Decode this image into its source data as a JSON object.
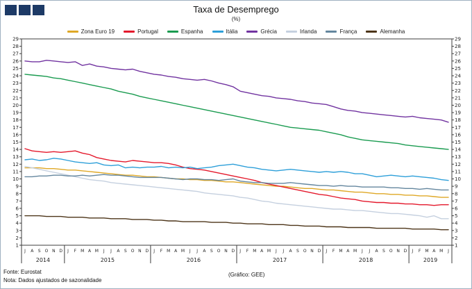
{
  "header": {
    "title": "Taxa de Desemprego",
    "subtitle": "(%)"
  },
  "logo": {
    "square_color": "#1d3a66",
    "square_count": 3
  },
  "footer": {
    "source": "Fonte: Eurostat",
    "note": "Nota: Dados ajustados de sazonalidade",
    "credit": "(Gráfico: GEE)"
  },
  "chart_data": {
    "type": "line",
    "title": "Taxa de Desemprego",
    "subtitle": "(%)",
    "ylim": [
      1,
      29
    ],
    "ytick_step": 1,
    "grid": false,
    "legend_position": "top",
    "axis_color": "#3c3c3c",
    "years": [
      {
        "label": "2014",
        "months": 6
      },
      {
        "label": "2015",
        "months": 12
      },
      {
        "label": "2016",
        "months": 12
      },
      {
        "label": "2017",
        "months": 12
      },
      {
        "label": "2018",
        "months": 12
      },
      {
        "label": "2019",
        "months": 6
      }
    ],
    "month_labels": [
      "J",
      "A",
      "S",
      "O",
      "N",
      "D",
      "J",
      "F",
      "M",
      "A",
      "M",
      "J",
      "J",
      "A",
      "S",
      "O",
      "N",
      "D",
      "J",
      "F",
      "M",
      "A",
      "M",
      "J",
      "J",
      "A",
      "S",
      "O",
      "N",
      "D",
      "J",
      "F",
      "M",
      "A",
      "M",
      "J",
      "J",
      "A",
      "S",
      "O",
      "N",
      "D",
      "J",
      "F",
      "M",
      "A",
      "M",
      "J",
      "J",
      "A",
      "S",
      "O",
      "N",
      "D",
      "J",
      "F",
      "M",
      "A",
      "M",
      "J"
    ],
    "series": [
      {
        "name": "Zona Euro 19",
        "color": "#dfa826",
        "values": [
          11.5,
          11.5,
          11.5,
          11.4,
          11.4,
          11.3,
          11.2,
          11.2,
          11.1,
          11.0,
          10.9,
          10.8,
          10.7,
          10.6,
          10.5,
          10.5,
          10.4,
          10.3,
          10.3,
          10.2,
          10.1,
          10.0,
          10.0,
          9.9,
          9.9,
          9.8,
          9.8,
          9.7,
          9.6,
          9.6,
          9.5,
          9.4,
          9.3,
          9.2,
          9.1,
          9.0,
          9.0,
          8.9,
          8.8,
          8.7,
          8.7,
          8.6,
          8.5,
          8.5,
          8.4,
          8.3,
          8.2,
          8.2,
          8.1,
          8.0,
          8.0,
          7.9,
          7.9,
          7.8,
          7.8,
          7.7,
          7.7,
          7.6,
          7.5,
          7.5
        ]
      },
      {
        "name": "Portugal",
        "color": "#e4192c",
        "values": [
          14.1,
          13.8,
          13.7,
          13.6,
          13.7,
          13.6,
          13.7,
          13.8,
          13.5,
          13.3,
          12.9,
          12.7,
          12.5,
          12.4,
          12.3,
          12.5,
          12.4,
          12.3,
          12.2,
          12.2,
          12.1,
          11.9,
          11.6,
          11.4,
          11.3,
          11.2,
          11.0,
          10.8,
          10.6,
          10.4,
          10.2,
          10.0,
          9.8,
          9.5,
          9.3,
          9.1,
          8.9,
          8.7,
          8.5,
          8.3,
          8.1,
          7.9,
          7.8,
          7.6,
          7.4,
          7.3,
          7.2,
          7.0,
          6.9,
          6.8,
          6.8,
          6.7,
          6.7,
          6.6,
          6.6,
          6.5,
          6.5,
          6.4,
          6.5,
          6.5
        ]
      },
      {
        "name": "Espanha",
        "color": "#1a9b50",
        "values": [
          24.2,
          24.1,
          24.0,
          23.9,
          23.7,
          23.6,
          23.4,
          23.2,
          23.0,
          22.8,
          22.6,
          22.4,
          22.2,
          21.9,
          21.7,
          21.5,
          21.2,
          21.0,
          20.8,
          20.6,
          20.4,
          20.2,
          20.0,
          19.8,
          19.6,
          19.4,
          19.2,
          19.0,
          18.8,
          18.6,
          18.4,
          18.2,
          18.0,
          17.8,
          17.6,
          17.4,
          17.2,
          17.0,
          16.9,
          16.8,
          16.7,
          16.6,
          16.4,
          16.2,
          16.0,
          15.7,
          15.5,
          15.3,
          15.2,
          15.1,
          15.0,
          14.9,
          14.8,
          14.6,
          14.5,
          14.4,
          14.3,
          14.2,
          14.1,
          14.0
        ]
      },
      {
        "name": "Itália",
        "color": "#2d9fd9",
        "values": [
          12.6,
          12.7,
          12.5,
          12.6,
          12.8,
          12.7,
          12.5,
          12.3,
          12.2,
          12.1,
          12.2,
          11.9,
          11.8,
          11.9,
          11.5,
          11.6,
          11.5,
          11.6,
          11.6,
          11.7,
          11.5,
          11.6,
          11.5,
          11.6,
          11.4,
          11.5,
          11.6,
          11.8,
          11.9,
          12.0,
          11.8,
          11.6,
          11.5,
          11.3,
          11.2,
          11.1,
          11.2,
          11.3,
          11.2,
          11.1,
          11.0,
          10.9,
          11.0,
          10.9,
          11.0,
          10.9,
          10.7,
          10.7,
          10.5,
          10.3,
          10.4,
          10.5,
          10.4,
          10.3,
          10.4,
          10.3,
          10.2,
          10.1,
          9.9,
          9.8
        ]
      },
      {
        "name": "Grécia",
        "color": "#7133a0",
        "values": [
          26.0,
          25.9,
          25.9,
          26.1,
          26.0,
          25.9,
          25.8,
          25.9,
          25.4,
          25.6,
          25.3,
          25.2,
          25.0,
          24.9,
          24.8,
          24.9,
          24.6,
          24.4,
          24.2,
          24.1,
          23.9,
          23.8,
          23.6,
          23.5,
          23.4,
          23.5,
          23.3,
          23.0,
          22.8,
          22.5,
          21.9,
          21.7,
          21.5,
          21.3,
          21.2,
          21.0,
          20.9,
          20.8,
          20.6,
          20.5,
          20.3,
          20.2,
          20.1,
          19.8,
          19.5,
          19.3,
          19.2,
          19.0,
          18.9,
          18.8,
          18.7,
          18.6,
          18.5,
          18.4,
          18.5,
          18.3,
          18.2,
          18.1,
          18.0,
          17.7
        ]
      },
      {
        "name": "Irlanda",
        "color": "#c5d0df",
        "values": [
          11.7,
          11.5,
          11.3,
          11.1,
          10.9,
          10.7,
          10.5,
          10.3,
          10.1,
          9.9,
          9.8,
          9.7,
          9.5,
          9.4,
          9.3,
          9.2,
          9.1,
          9.0,
          8.9,
          8.8,
          8.7,
          8.6,
          8.5,
          8.4,
          8.3,
          8.1,
          8.0,
          7.9,
          7.8,
          7.7,
          7.5,
          7.4,
          7.2,
          7.0,
          6.9,
          6.7,
          6.6,
          6.5,
          6.4,
          6.3,
          6.2,
          6.1,
          6.0,
          5.9,
          5.9,
          5.8,
          5.7,
          5.7,
          5.6,
          5.5,
          5.4,
          5.3,
          5.3,
          5.2,
          5.1,
          5.0,
          4.8,
          5.0,
          4.6,
          4.6
        ]
      },
      {
        "name": "França",
        "color": "#64869e",
        "values": [
          10.3,
          10.3,
          10.4,
          10.4,
          10.5,
          10.5,
          10.4,
          10.4,
          10.5,
          10.4,
          10.5,
          10.6,
          10.5,
          10.5,
          10.4,
          10.3,
          10.2,
          10.2,
          10.2,
          10.2,
          10.1,
          10.0,
          9.9,
          10.0,
          10.0,
          9.9,
          9.9,
          9.8,
          9.9,
          10.0,
          9.7,
          9.6,
          9.5,
          9.5,
          9.4,
          9.4,
          9.4,
          9.5,
          9.4,
          9.3,
          9.2,
          9.1,
          9.1,
          9.0,
          9.1,
          9.0,
          9.0,
          8.9,
          8.9,
          8.9,
          8.9,
          8.8,
          8.8,
          8.7,
          8.7,
          8.6,
          8.7,
          8.6,
          8.5,
          8.5
        ]
      },
      {
        "name": "Alemanha",
        "color": "#4c3418",
        "values": [
          5.0,
          5.0,
          5.0,
          4.9,
          4.9,
          4.9,
          4.8,
          4.8,
          4.8,
          4.7,
          4.7,
          4.7,
          4.6,
          4.6,
          4.6,
          4.5,
          4.5,
          4.5,
          4.4,
          4.4,
          4.3,
          4.3,
          4.2,
          4.2,
          4.2,
          4.2,
          4.1,
          4.1,
          4.1,
          4.0,
          4.0,
          3.9,
          3.9,
          3.9,
          3.8,
          3.8,
          3.8,
          3.7,
          3.7,
          3.6,
          3.6,
          3.6,
          3.5,
          3.5,
          3.5,
          3.4,
          3.4,
          3.4,
          3.4,
          3.3,
          3.3,
          3.3,
          3.3,
          3.3,
          3.2,
          3.2,
          3.2,
          3.2,
          3.1,
          3.1
        ]
      }
    ]
  }
}
